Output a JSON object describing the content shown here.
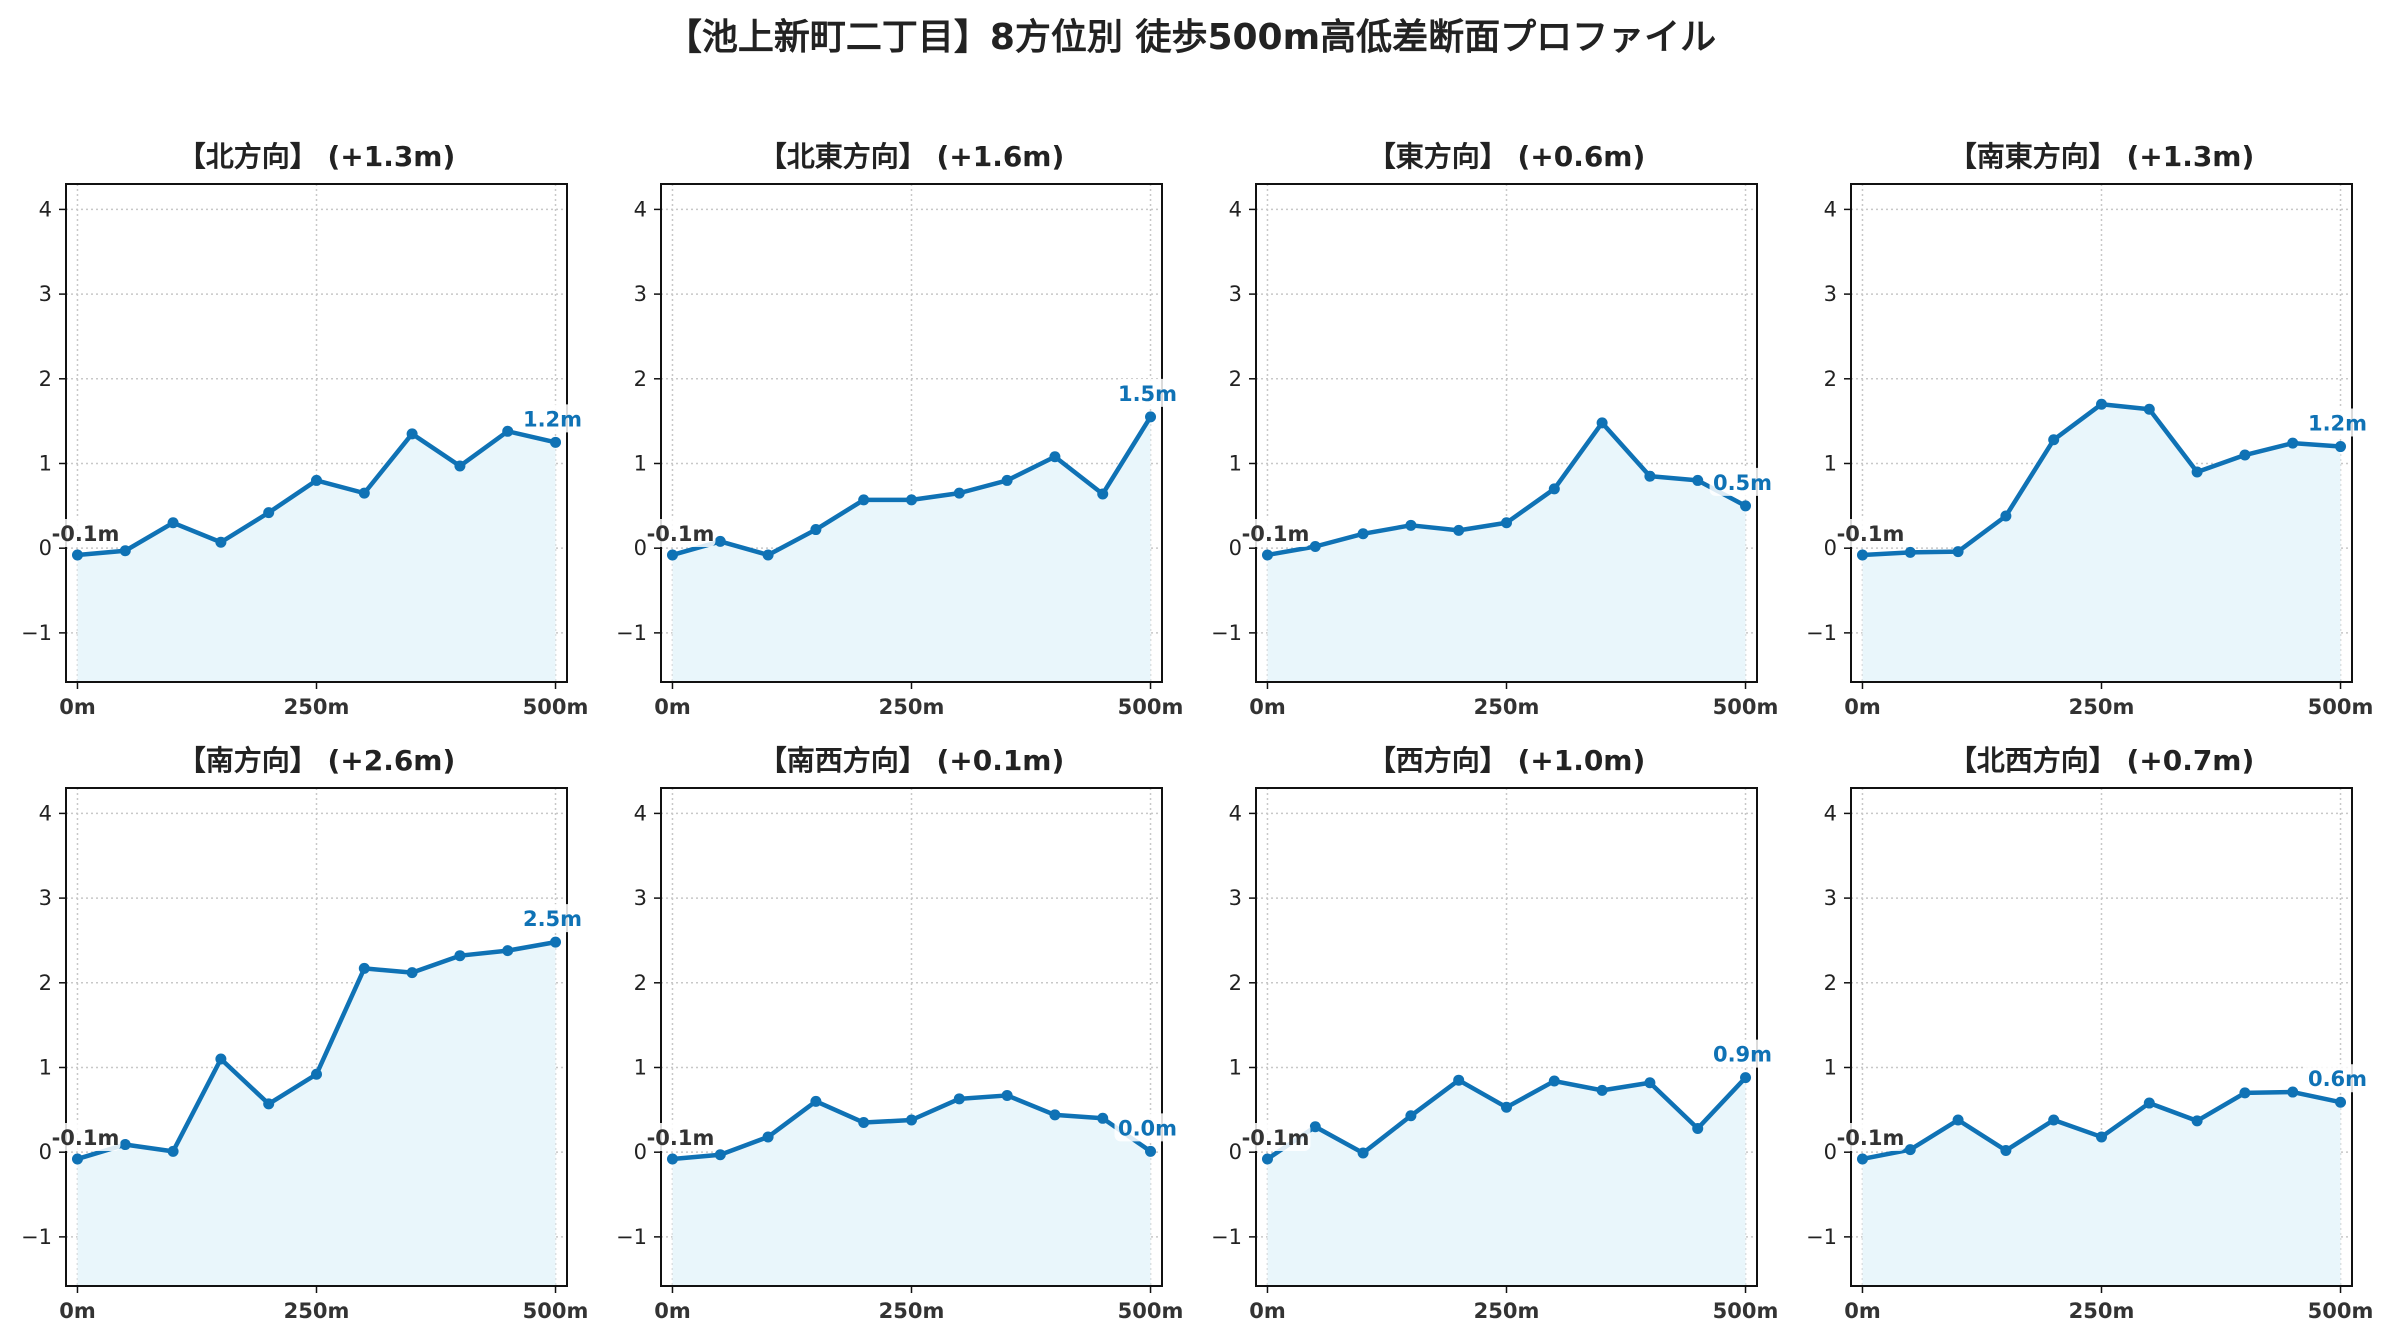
{
  "title": "【池上新町二丁目】8方位別 徒歩500m高低差断面プロファイル",
  "colors": {
    "line": "#0f72b5",
    "fill": "#e9f6fb",
    "start_label": "#333333",
    "grid": "#c8c8c8",
    "text": "#222222"
  },
  "chart_data": [
    {
      "type": "line",
      "title": "【北方向】 (+1.3m)",
      "x": [
        0,
        50,
        100,
        150,
        200,
        250,
        300,
        350,
        400,
        450,
        500
      ],
      "values": [
        -0.08,
        -0.03,
        0.3,
        0.07,
        0.42,
        0.8,
        0.65,
        1.35,
        0.97,
        1.38,
        1.25
      ],
      "start_label": "-0.1m",
      "end_label": "1.2m",
      "xticks": [
        "0m",
        "250m",
        "500m"
      ],
      "xtick_values": [
        0,
        250,
        500
      ],
      "yticks": [
        "−1",
        "0",
        "1",
        "2",
        "3",
        "4"
      ],
      "ytick_values": [
        -1,
        0,
        1,
        2,
        3,
        4
      ],
      "xlim": [
        -12,
        512
      ],
      "ylim": [
        -1.58,
        4.3
      ],
      "grid": true
    },
    {
      "type": "line",
      "title": "【北東方向】 (+1.6m)",
      "x": [
        0,
        50,
        100,
        150,
        200,
        250,
        300,
        350,
        400,
        450,
        500
      ],
      "values": [
        -0.08,
        0.08,
        -0.08,
        0.22,
        0.57,
        0.57,
        0.65,
        0.8,
        1.08,
        0.64,
        1.55
      ],
      "start_label": "-0.1m",
      "end_label": "1.5m",
      "xticks": [
        "0m",
        "250m",
        "500m"
      ],
      "xtick_values": [
        0,
        250,
        500
      ],
      "yticks": [
        "−1",
        "0",
        "1",
        "2",
        "3",
        "4"
      ],
      "ytick_values": [
        -1,
        0,
        1,
        2,
        3,
        4
      ],
      "xlim": [
        -12,
        512
      ],
      "ylim": [
        -1.58,
        4.3
      ],
      "grid": true
    },
    {
      "type": "line",
      "title": "【東方向】 (+0.6m)",
      "x": [
        0,
        50,
        100,
        150,
        200,
        250,
        300,
        350,
        400,
        450,
        500
      ],
      "values": [
        -0.08,
        0.02,
        0.17,
        0.27,
        0.21,
        0.3,
        0.7,
        1.48,
        0.85,
        0.8,
        0.5
      ],
      "start_label": "-0.1m",
      "end_label": "0.5m",
      "xticks": [
        "0m",
        "250m",
        "500m"
      ],
      "xtick_values": [
        0,
        250,
        500
      ],
      "yticks": [
        "−1",
        "0",
        "1",
        "2",
        "3",
        "4"
      ],
      "ytick_values": [
        -1,
        0,
        1,
        2,
        3,
        4
      ],
      "xlim": [
        -12,
        512
      ],
      "ylim": [
        -1.58,
        4.3
      ],
      "grid": true
    },
    {
      "type": "line",
      "title": "【南東方向】 (+1.3m)",
      "x": [
        0,
        50,
        100,
        150,
        200,
        250,
        300,
        350,
        400,
        450,
        500
      ],
      "values": [
        -0.08,
        -0.05,
        -0.04,
        0.38,
        1.28,
        1.7,
        1.64,
        0.9,
        1.1,
        1.24,
        1.2
      ],
      "start_label": "-0.1m",
      "end_label": "1.2m",
      "xticks": [
        "0m",
        "250m",
        "500m"
      ],
      "xtick_values": [
        0,
        250,
        500
      ],
      "yticks": [
        "−1",
        "0",
        "1",
        "2",
        "3",
        "4"
      ],
      "ytick_values": [
        -1,
        0,
        1,
        2,
        3,
        4
      ],
      "xlim": [
        -12,
        512
      ],
      "ylim": [
        -1.58,
        4.3
      ],
      "grid": true
    },
    {
      "type": "line",
      "title": "【南方向】 (+2.6m)",
      "x": [
        0,
        50,
        100,
        150,
        200,
        250,
        300,
        350,
        400,
        450,
        500
      ],
      "values": [
        -0.08,
        0.09,
        0.01,
        1.1,
        0.57,
        0.92,
        2.17,
        2.12,
        2.32,
        2.38,
        2.48
      ],
      "start_label": "-0.1m",
      "end_label": "2.5m",
      "xticks": [
        "0m",
        "250m",
        "500m"
      ],
      "xtick_values": [
        0,
        250,
        500
      ],
      "yticks": [
        "−1",
        "0",
        "1",
        "2",
        "3",
        "4"
      ],
      "ytick_values": [
        -1,
        0,
        1,
        2,
        3,
        4
      ],
      "xlim": [
        -12,
        512
      ],
      "ylim": [
        -1.58,
        4.3
      ],
      "grid": true
    },
    {
      "type": "line",
      "title": "【南西方向】 (+0.1m)",
      "x": [
        0,
        50,
        100,
        150,
        200,
        250,
        300,
        350,
        400,
        450,
        500
      ],
      "values": [
        -0.08,
        -0.03,
        0.18,
        0.6,
        0.35,
        0.38,
        0.63,
        0.67,
        0.44,
        0.4,
        0.01
      ],
      "start_label": "-0.1m",
      "end_label": "0.0m",
      "xticks": [
        "0m",
        "250m",
        "500m"
      ],
      "xtick_values": [
        0,
        250,
        500
      ],
      "yticks": [
        "−1",
        "0",
        "1",
        "2",
        "3",
        "4"
      ],
      "ytick_values": [
        -1,
        0,
        1,
        2,
        3,
        4
      ],
      "xlim": [
        -12,
        512
      ],
      "ylim": [
        -1.58,
        4.3
      ],
      "grid": true
    },
    {
      "type": "line",
      "title": "【西方向】 (+1.0m)",
      "x": [
        0,
        50,
        100,
        150,
        200,
        250,
        300,
        350,
        400,
        450,
        500
      ],
      "values": [
        -0.08,
        0.3,
        -0.01,
        0.43,
        0.85,
        0.53,
        0.84,
        0.73,
        0.82,
        0.28,
        0.88
      ],
      "start_label": "-0.1m",
      "end_label": "0.9m",
      "xticks": [
        "0m",
        "250m",
        "500m"
      ],
      "xtick_values": [
        0,
        250,
        500
      ],
      "yticks": [
        "−1",
        "0",
        "1",
        "2",
        "3",
        "4"
      ],
      "ytick_values": [
        -1,
        0,
        1,
        2,
        3,
        4
      ],
      "xlim": [
        -12,
        512
      ],
      "ylim": [
        -1.58,
        4.3
      ],
      "grid": true
    },
    {
      "type": "line",
      "title": "【北西方向】 (+0.7m)",
      "x": [
        0,
        50,
        100,
        150,
        200,
        250,
        300,
        350,
        400,
        450,
        500
      ],
      "values": [
        -0.08,
        0.03,
        0.38,
        0.02,
        0.38,
        0.18,
        0.58,
        0.37,
        0.7,
        0.71,
        0.59
      ],
      "start_label": "-0.1m",
      "end_label": "0.6m",
      "xticks": [
        "0m",
        "250m",
        "500m"
      ],
      "xtick_values": [
        0,
        250,
        500
      ],
      "yticks": [
        "−1",
        "0",
        "1",
        "2",
        "3",
        "4"
      ],
      "ytick_values": [
        -1,
        0,
        1,
        2,
        3,
        4
      ],
      "xlim": [
        -12,
        512
      ],
      "ylim": [
        -1.58,
        4.3
      ],
      "grid": true
    }
  ]
}
